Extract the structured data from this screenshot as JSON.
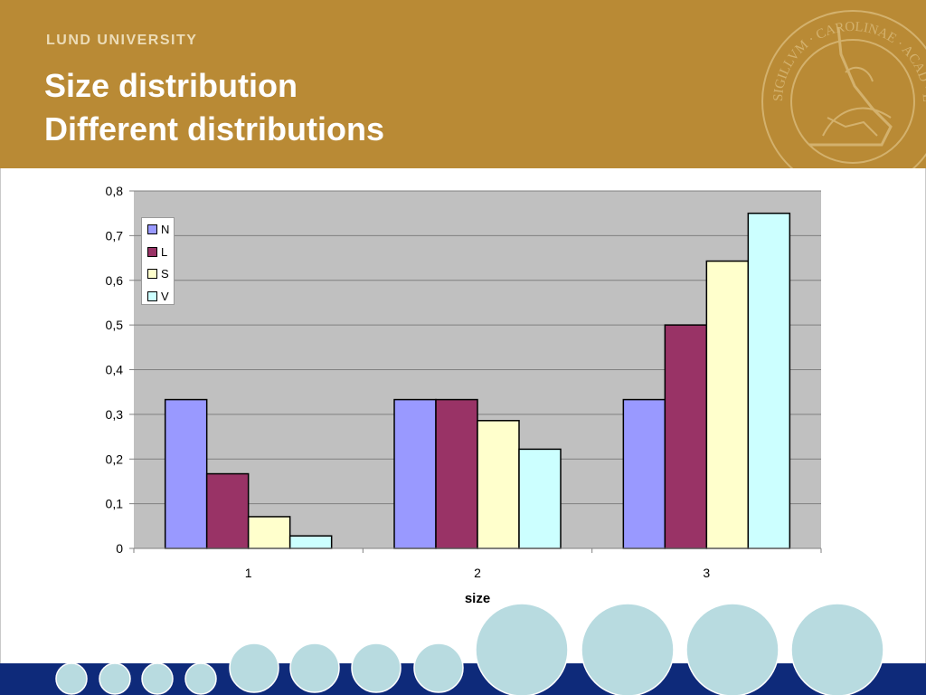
{
  "header": {
    "university": "LUND UNIVERSITY",
    "title_line_1": "Size distribution",
    "title_line_2": "Different distributions",
    "seal_text": "SIGILLVM · CAROLINAE · ACAD · LVND"
  },
  "colors": {
    "header_bg": "#b98a35",
    "footer_band": "#0e2a7a",
    "bubble_fill": "#b8dbe0",
    "plot_bg": "#c0c0c0"
  },
  "chart_data": {
    "type": "bar",
    "title": "",
    "xlabel": "size",
    "ylabel": "",
    "categories": [
      "1",
      "2",
      "3"
    ],
    "ylim": [
      0,
      0.8
    ],
    "yticks": [
      "0",
      "0,1",
      "0,2",
      "0,3",
      "0,4",
      "0,5",
      "0,6",
      "0,7",
      "0,8"
    ],
    "grid": true,
    "legend_position": "top-left",
    "series": [
      {
        "name": "N",
        "color": "#9999ff",
        "values": [
          0.333,
          0.333,
          0.333
        ]
      },
      {
        "name": "L",
        "color": "#993366",
        "values": [
          0.167,
          0.333,
          0.5
        ]
      },
      {
        "name": "S",
        "color": "#ffffcc",
        "values": [
          0.071,
          0.286,
          0.643
        ]
      },
      {
        "name": "V",
        "color": "#ccffff",
        "values": [
          0.028,
          0.222,
          0.75
        ]
      }
    ]
  }
}
